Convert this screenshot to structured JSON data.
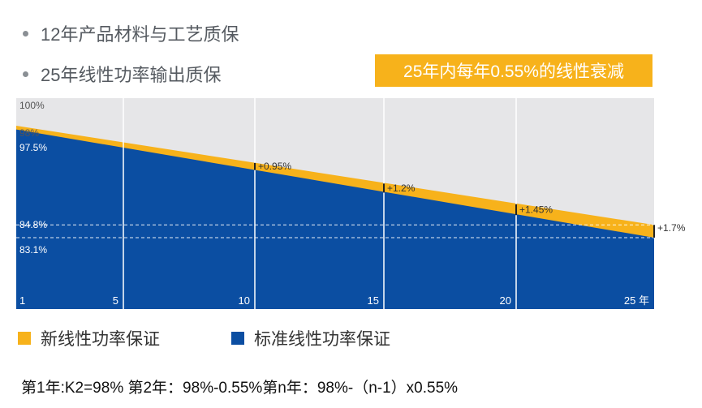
{
  "bullets": [
    "12年产品材料与工艺质保",
    "25年线性功率输出质保"
  ],
  "callout": "25年内每年0.55%的线性衰减",
  "legend": [
    {
      "label": "新线性功率保证",
      "color": "#f7b21b"
    },
    {
      "label": "标准线性功率保证",
      "color": "#0b4ea2"
    }
  ],
  "formula": "第1年:K2=98%  第2年：98%-0.55%第n年：98%-（n-1）x0.55%",
  "colors": {
    "background": "#e6e6e8",
    "new": "#f7b21b",
    "standard": "#0b4ea2",
    "grid": "#ffffff"
  },
  "chart_data": {
    "type": "area",
    "x_range": [
      1,
      25
    ],
    "x_ticks": [
      {
        "x": 1,
        "label": "1"
      },
      {
        "x": 5,
        "label": "5"
      },
      {
        "x": 10,
        "label": "10"
      },
      {
        "x": 15,
        "label": "15"
      },
      {
        "x": 20,
        "label": "20"
      },
      {
        "x": 25,
        "label": "25 年"
      }
    ],
    "y_ticks": [
      "100%",
      "98%",
      "97.5%",
      "84.8%",
      "83.1%"
    ],
    "series": [
      {
        "name": "新线性功率保证",
        "x": [
          1,
          25
        ],
        "values": [
          98,
          84.8
        ]
      },
      {
        "name": "标准线性功率保证",
        "x": [
          1,
          25
        ],
        "values": [
          97.5,
          83.1
        ]
      }
    ],
    "annotations": [
      {
        "x": 10,
        "label": "+0.95%"
      },
      {
        "x": 15,
        "label": "+1.2%"
      },
      {
        "x": 20,
        "label": "+1.45%"
      },
      {
        "x": 25,
        "label": "+1.7%"
      }
    ]
  }
}
